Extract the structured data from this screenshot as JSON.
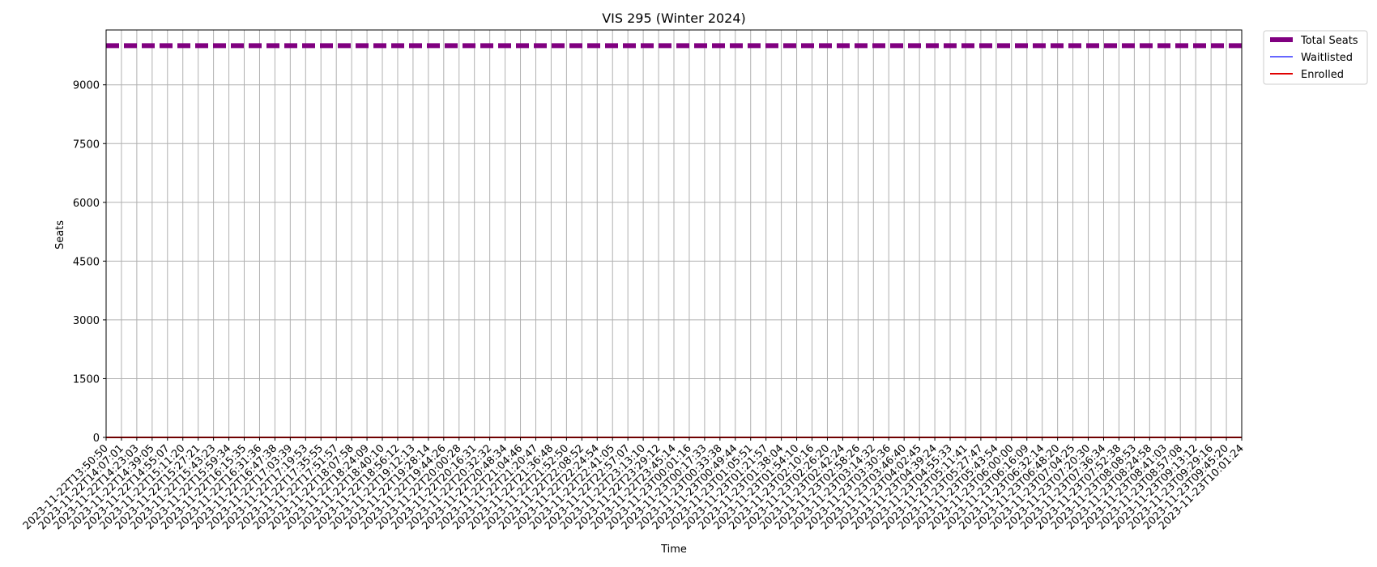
{
  "chart_data": {
    "type": "line",
    "title": "VIS 295 (Winter 2024)",
    "xlabel": "Time",
    "ylabel": "Seats",
    "ylim": [
      0,
      10400
    ],
    "yticks": [
      0,
      1500,
      3000,
      4500,
      6000,
      7500,
      9000
    ],
    "grid": true,
    "legend_position": "outside-top-right",
    "x": [
      "2023-11-22T13:50:50",
      "2023-11-22T14:07:01",
      "2023-11-22T14:23:03",
      "2023-11-22T14:39:05",
      "2023-11-22T14:55:07",
      "2023-11-22T15:11:20",
      "2023-11-22T15:27:21",
      "2023-11-22T15:43:23",
      "2023-11-22T15:59:34",
      "2023-11-22T16:15:35",
      "2023-11-22T16:31:36",
      "2023-11-22T16:47:38",
      "2023-11-22T17:03:39",
      "2023-11-22T17:19:53",
      "2023-11-22T17:35:55",
      "2023-11-22T17:51:57",
      "2023-11-22T18:07:58",
      "2023-11-22T18:24:09",
      "2023-11-22T18:40:10",
      "2023-11-22T18:56:12",
      "2023-11-22T19:12:13",
      "2023-11-22T19:28:14",
      "2023-11-22T19:44:26",
      "2023-11-22T20:00:28",
      "2023-11-22T20:16:31",
      "2023-11-22T20:32:32",
      "2023-11-22T20:48:34",
      "2023-11-22T21:04:46",
      "2023-11-22T21:20:47",
      "2023-11-22T21:36:48",
      "2023-11-22T21:52:50",
      "2023-11-22T22:08:52",
      "2023-11-22T22:24:54",
      "2023-11-22T22:41:05",
      "2023-11-22T22:57:07",
      "2023-11-22T23:13:10",
      "2023-11-22T23:29:12",
      "2023-11-22T23:45:14",
      "2023-11-23T00:01:16",
      "2023-11-23T00:17:33",
      "2023-11-23T00:33:38",
      "2023-11-23T00:49:44",
      "2023-11-23T01:05:51",
      "2023-11-23T01:21:57",
      "2023-11-23T01:38:04",
      "2023-11-23T01:54:10",
      "2023-11-23T02:10:16",
      "2023-11-23T02:26:20",
      "2023-11-23T02:42:24",
      "2023-11-23T02:58:26",
      "2023-11-23T03:14:32",
      "2023-11-23T03:30:36",
      "2023-11-23T03:46:40",
      "2023-11-23T04:02:45",
      "2023-11-23T04:39:24",
      "2023-11-23T04:55:33",
      "2023-11-23T05:11:41",
      "2023-11-23T05:27:47",
      "2023-11-23T05:43:54",
      "2023-11-23T06:00:00",
      "2023-11-23T06:16:09",
      "2023-11-23T06:32:14",
      "2023-11-23T06:48:20",
      "2023-11-23T07:04:25",
      "2023-11-23T07:20:30",
      "2023-11-23T07:36:34",
      "2023-11-23T07:52:38",
      "2023-11-23T08:08:53",
      "2023-11-23T08:24:58",
      "2023-11-23T08:41:03",
      "2023-11-23T08:57:08",
      "2023-11-23T09:13:12",
      "2023-11-23T09:29:16",
      "2023-11-23T09:45:20",
      "2023-11-23T10:01:24"
    ],
    "series": [
      {
        "name": "Total Seats",
        "constant": 9999,
        "color": "#800080",
        "style": "dashed"
      },
      {
        "name": "Waitlisted",
        "constant": 0,
        "color": "#3333ff",
        "style": "solid"
      },
      {
        "name": "Enrolled",
        "constant": 0,
        "color": "#e00000",
        "style": "solid"
      }
    ]
  }
}
